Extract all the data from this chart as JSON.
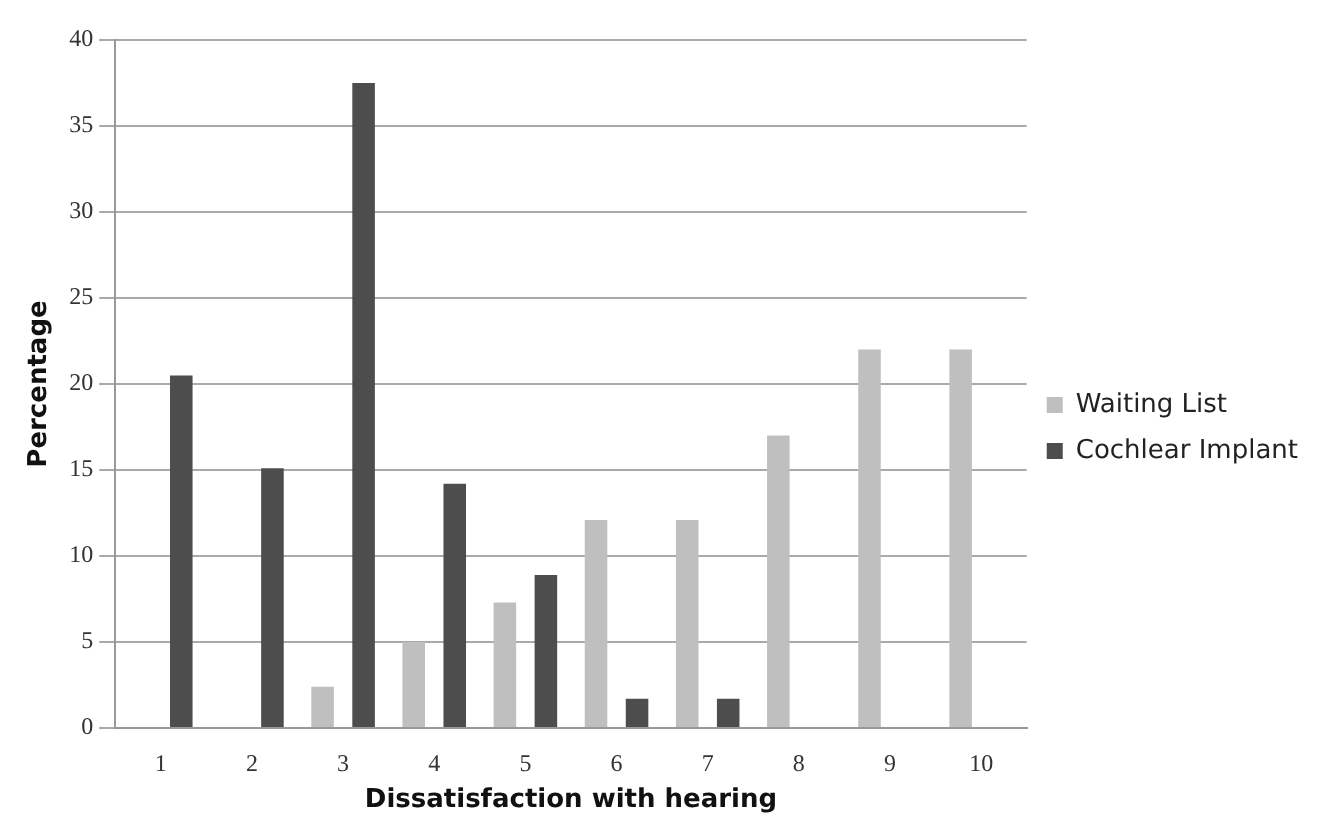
{
  "chart_data": {
    "type": "bar",
    "xlabel": "Dissatisfaction with hearing",
    "ylabel": "Percentage",
    "categories": [
      "1",
      "2",
      "3",
      "4",
      "5",
      "6",
      "7",
      "8",
      "9",
      "10"
    ],
    "series": [
      {
        "name": "Waiting List",
        "color": "#bfbfbf",
        "values": [
          0,
          0,
          2.4,
          5,
          7.3,
          12.1,
          12.1,
          17,
          22,
          22
        ]
      },
      {
        "name": "Cochlear Implant",
        "color": "#4d4d4d",
        "values": [
          20.5,
          15.1,
          37.5,
          14.2,
          8.9,
          1.7,
          1.7,
          0,
          0,
          0
        ]
      }
    ],
    "ylim": [
      0,
      40
    ],
    "yticks": [
      0,
      5,
      10,
      15,
      20,
      25,
      30,
      35,
      40
    ],
    "grid": "y",
    "legend": "right"
  }
}
